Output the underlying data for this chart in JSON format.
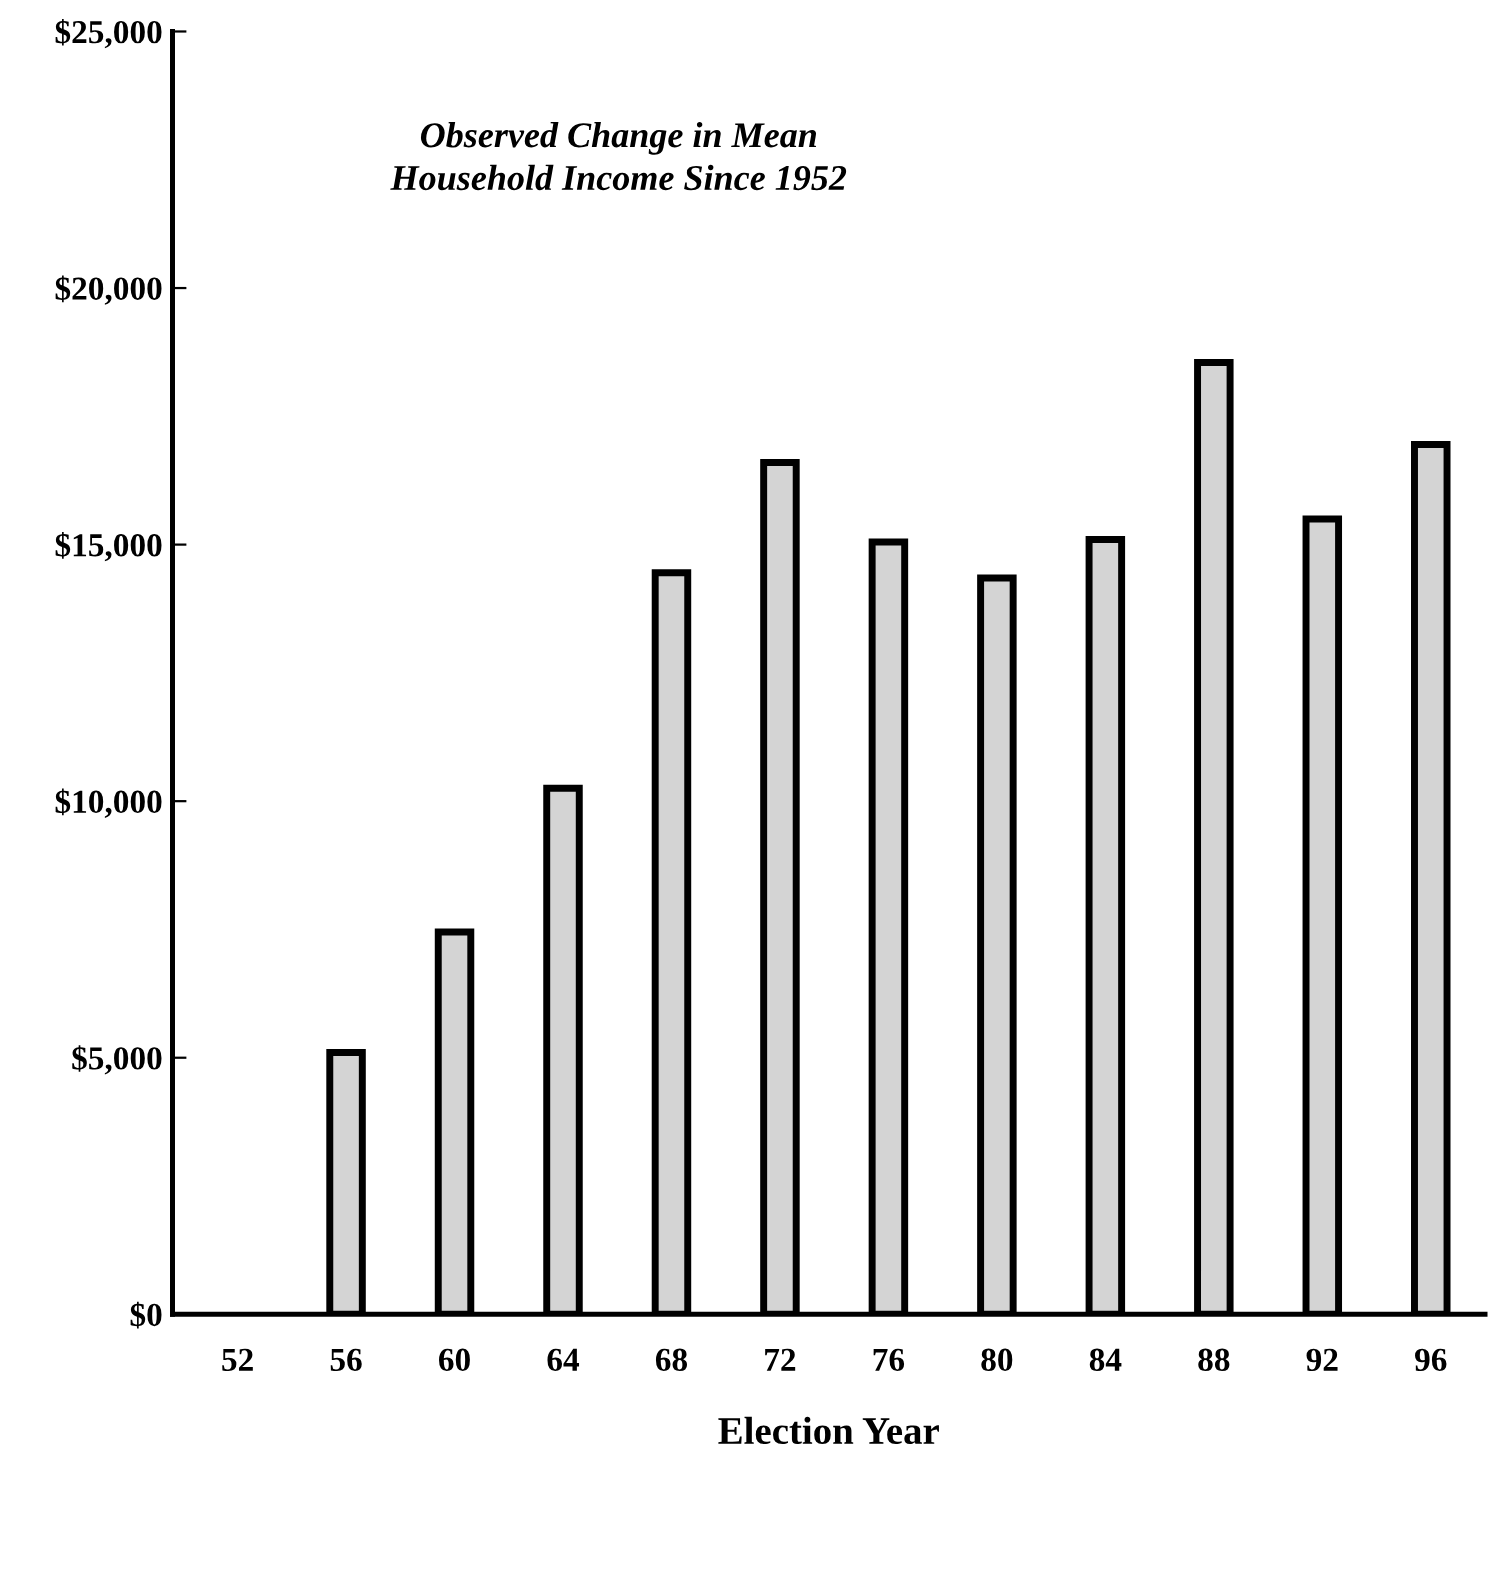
{
  "chart_data": {
    "type": "bar",
    "title": "Observed Change in Mean\nHousehold Income Since 1952",
    "xlabel": "Election Year",
    "categories": [
      "52",
      "56",
      "60",
      "64",
      "68",
      "72",
      "76",
      "80",
      "84",
      "88",
      "92",
      "96"
    ],
    "values": [
      null,
      5100,
      7450,
      10250,
      14450,
      16600,
      15050,
      14350,
      15100,
      18550,
      15500,
      16950
    ],
    "color": "#d4d4d4",
    "ylim": [
      0,
      25000
    ],
    "yticks": [
      {
        "value": 0,
        "label": "$0"
      },
      {
        "value": 5000,
        "label": "$5,000"
      },
      {
        "value": 10000,
        "label": "$10,000"
      },
      {
        "value": 15000,
        "label": "$15,000"
      },
      {
        "value": 20000,
        "label": "$20,000"
      },
      {
        "value": 25000,
        "label": "$25,000"
      }
    ],
    "grid": false,
    "legend": false
  }
}
